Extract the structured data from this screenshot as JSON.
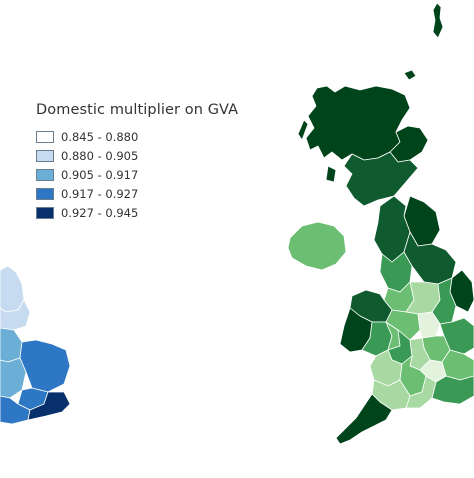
{
  "left_map": {
    "legend": {
      "title": "Domestic multiplier on GVA",
      "classes": [
        {
          "range": "0.845 - 0.880",
          "color": "#ffffff"
        },
        {
          "range": "0.880 - 0.905",
          "color": "#c6dbef"
        },
        {
          "range": "0.905 - 0.917",
          "color": "#6baed6"
        },
        {
          "range": "0.917 - 0.927",
          "color": "#2d77c4"
        },
        {
          "range": "0.927 - 0.945",
          "color": "#08306b"
        }
      ]
    }
  },
  "right_map": {
    "palette": {
      "very_light": "#e2f2dc",
      "light": "#a8d9a3",
      "medium": "#6cbf72",
      "mid_dark": "#3a9a55",
      "dark": "#0f5a2e",
      "darkest": "#00441b"
    }
  },
  "colors": {
    "boundary": "#ffffff",
    "legend_text": "#333333"
  }
}
